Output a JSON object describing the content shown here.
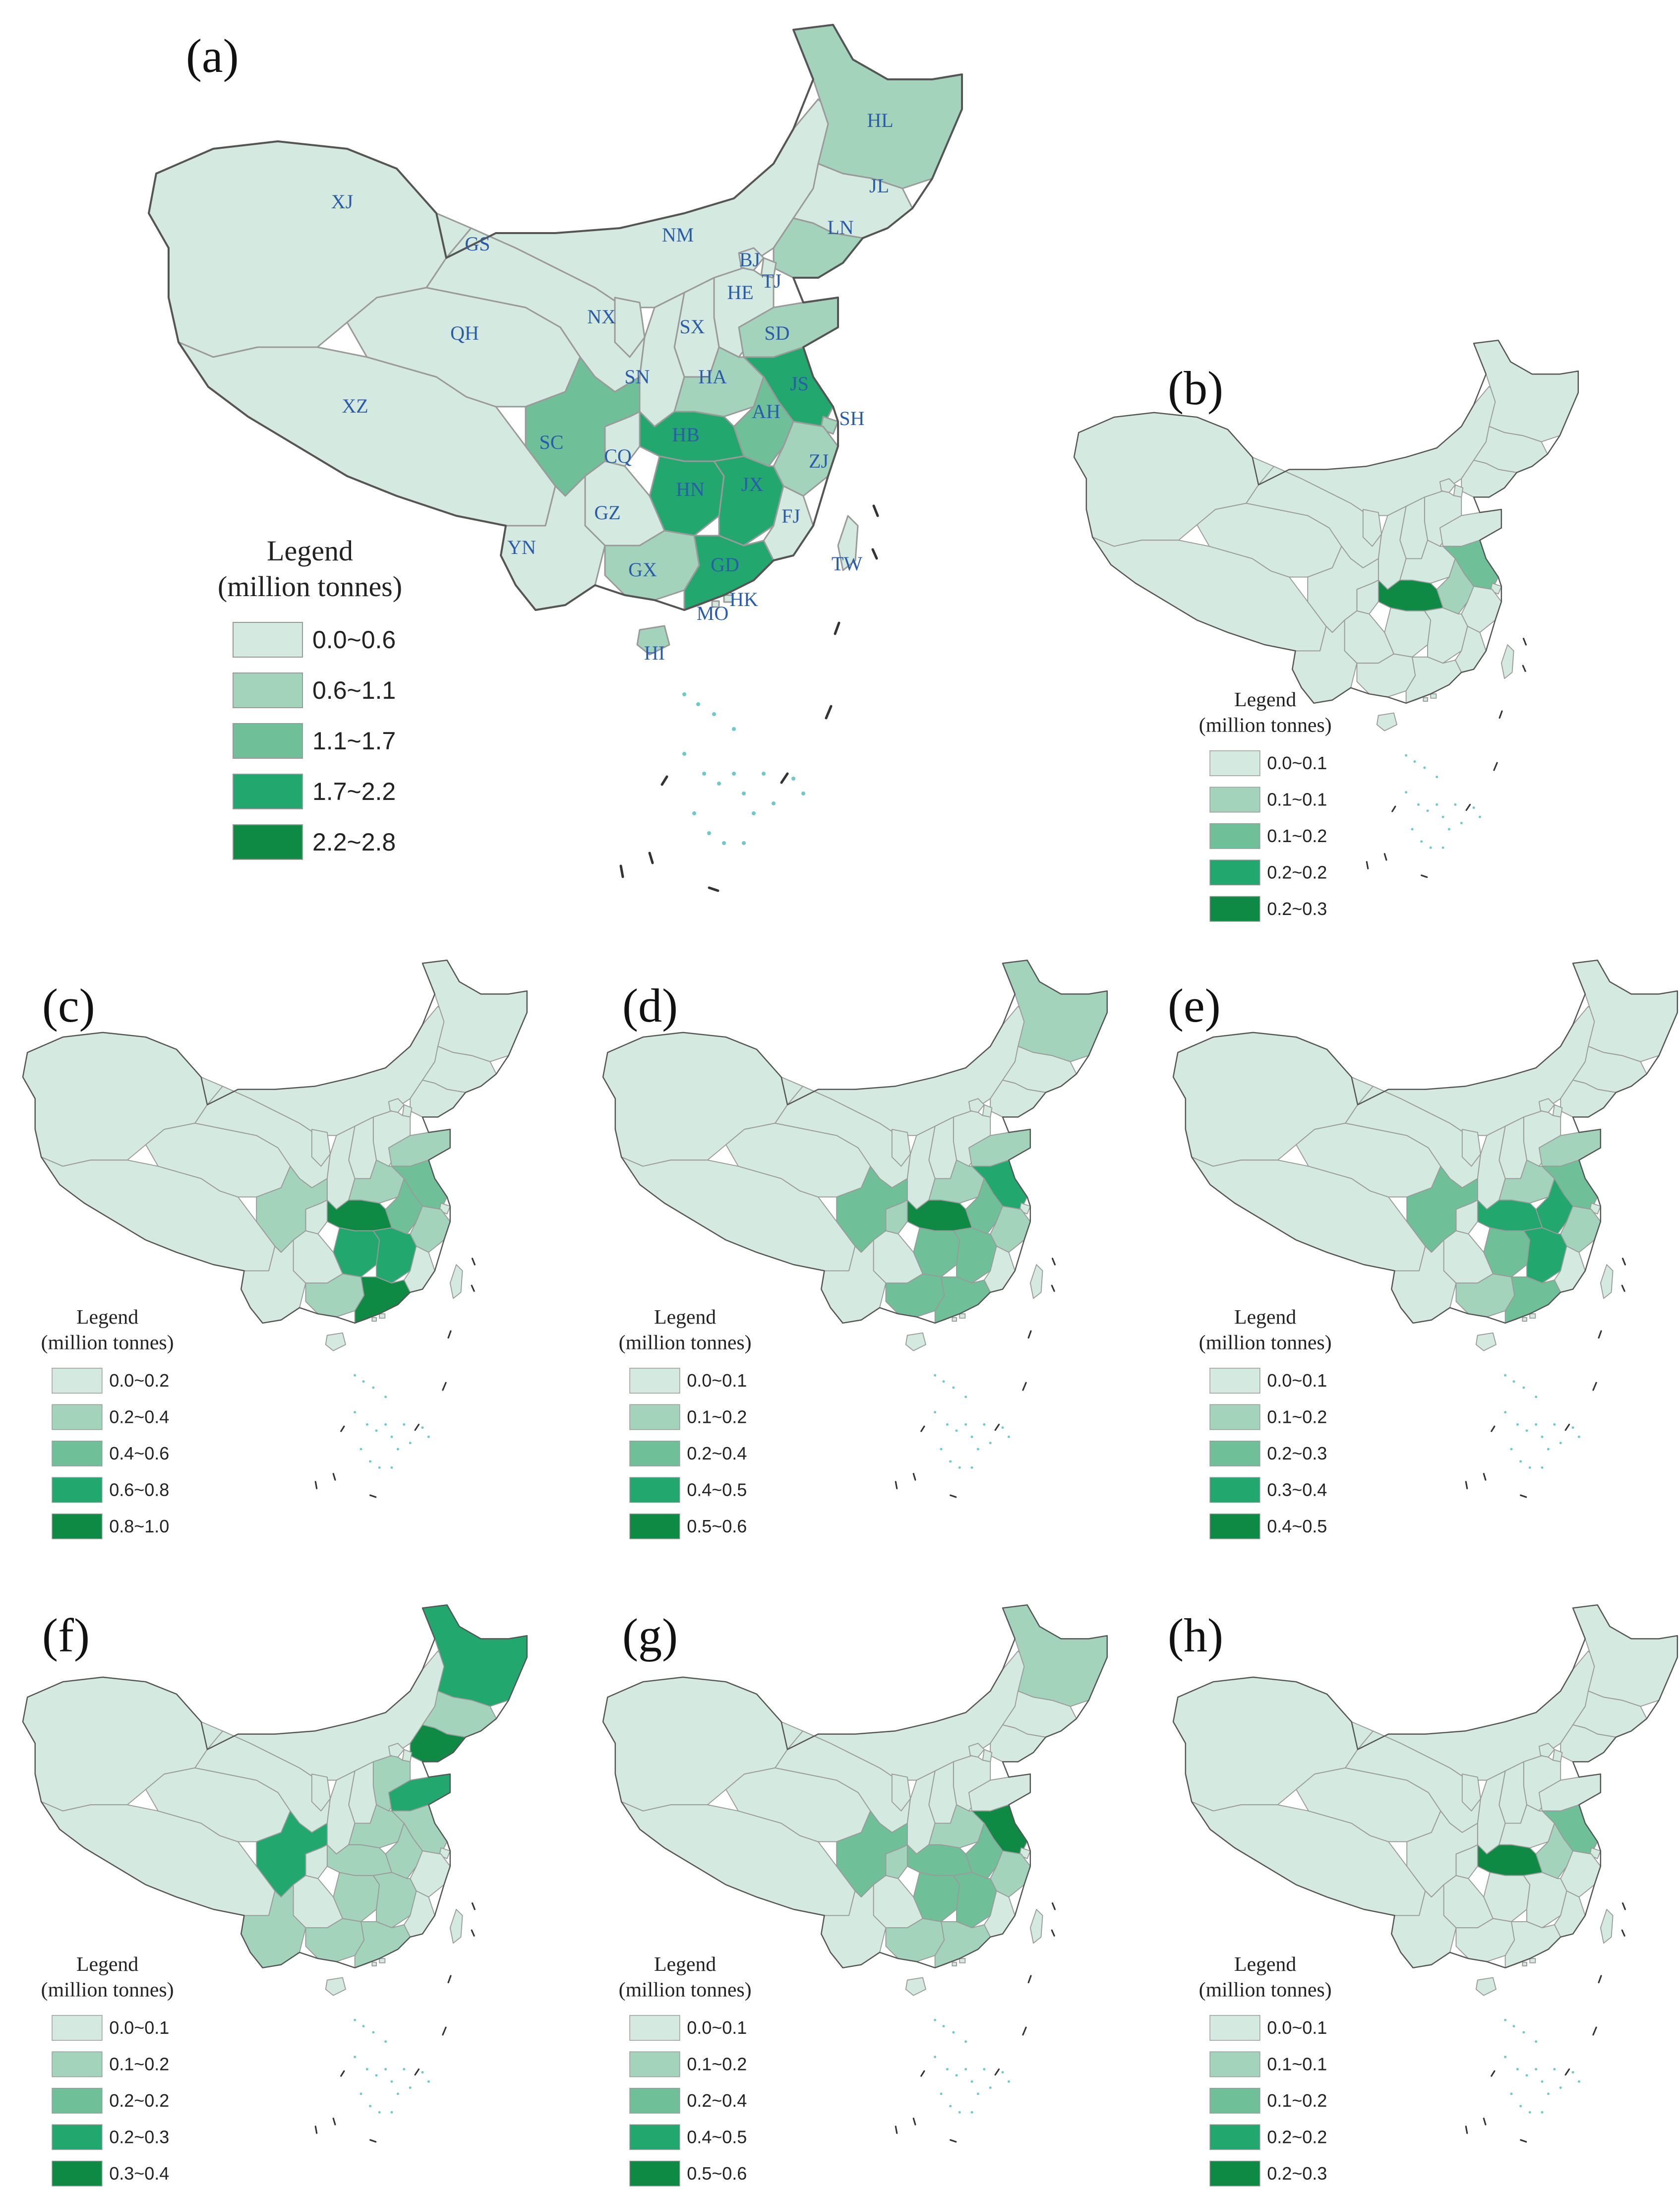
{
  "colors": {
    "class1": "#d4e9df",
    "class2": "#a3d3bb",
    "class3": "#6fbf98",
    "class4": "#22a76e",
    "class5": "#0f8a45",
    "label": "#2a5caa",
    "border": "#9a9a9a"
  },
  "legend_title_line1": "Legend",
  "legend_title_line2": "(million tonnes)",
  "panels": [
    {
      "id": "a",
      "label": "(a)",
      "legend": [
        "0.0~0.6",
        "0.6~1.1",
        "1.1~1.7",
        "1.7~2.2",
        "2.2~2.8"
      ],
      "province_labels": [
        "XJ",
        "GS",
        "NM",
        "HL",
        "JL",
        "LN",
        "BJ",
        "TJ",
        "HE",
        "SX",
        "NX",
        "QH",
        "XZ",
        "SN",
        "SD",
        "HA",
        "JS",
        "AH",
        "SH",
        "SC",
        "CQ",
        "HB",
        "HN",
        "JX",
        "ZJ",
        "FJ",
        "GZ",
        "YN",
        "GX",
        "GD",
        "HK",
        "MO",
        "TW",
        "HI"
      ],
      "classes": {
        "XJ": 1,
        "GS": 1,
        "NM": 1,
        "HL": 2,
        "JL": 1,
        "LN": 2,
        "BJ": 1,
        "TJ": 1,
        "HE": 1,
        "SX": 1,
        "NX": 1,
        "QH": 1,
        "XZ": 1,
        "SN": 1,
        "SD": 2,
        "HA": 2,
        "JS": 4,
        "AH": 3,
        "SH": 2,
        "SC": 3,
        "CQ": 1,
        "HB": 4,
        "HN": 4,
        "JX": 4,
        "ZJ": 2,
        "FJ": 1,
        "GZ": 1,
        "YN": 1,
        "GX": 2,
        "GD": 4,
        "TW": 1,
        "HI": 2
      }
    },
    {
      "id": "b",
      "label": "(b)",
      "legend": [
        "0.0~0.1",
        "0.1~0.1",
        "0.1~0.2",
        "0.2~0.2",
        "0.2~0.3"
      ],
      "classes": {
        "HB": 5,
        "JS": 3,
        "AH": 2
      }
    },
    {
      "id": "c",
      "label": "(c)",
      "legend": [
        "0.0~0.2",
        "0.2~0.4",
        "0.4~0.6",
        "0.6~0.8",
        "0.8~1.0"
      ],
      "classes": {
        "HB": 5,
        "HN": 4,
        "JX": 4,
        "GD": 5,
        "AH": 3,
        "JS": 3,
        "SC": 2,
        "GX": 2,
        "SD": 2,
        "HA": 2,
        "ZJ": 2
      }
    },
    {
      "id": "d",
      "label": "(d)",
      "legend": [
        "0.0~0.1",
        "0.1~0.2",
        "0.2~0.4",
        "0.4~0.5",
        "0.5~0.6"
      ],
      "classes": {
        "HB": 5,
        "JS": 4,
        "AH": 3,
        "HN": 3,
        "JX": 3,
        "GD": 3,
        "GX": 3,
        "SC": 3,
        "HL": 2,
        "HA": 2,
        "SD": 2,
        "CQ": 2,
        "ZJ": 2
      }
    },
    {
      "id": "e",
      "label": "(e)",
      "legend": [
        "0.0~0.1",
        "0.1~0.2",
        "0.2~0.3",
        "0.3~0.4",
        "0.4~0.5"
      ],
      "classes": {
        "HB": 4,
        "JX": 4,
        "HN": 3,
        "AH": 4,
        "JS": 3,
        "SC": 3,
        "GD": 3,
        "GX": 2,
        "HA": 2,
        "SD": 2,
        "ZJ": 2
      }
    },
    {
      "id": "f",
      "label": "(f)",
      "legend": [
        "0.0~0.1",
        "0.1~0.2",
        "0.2~0.2",
        "0.2~0.3",
        "0.3~0.4"
      ],
      "classes": {
        "HL": 4,
        "LN": 5,
        "SD": 4,
        "SC": 4,
        "HE": 2,
        "HA": 2,
        "JS": 2,
        "AH": 2,
        "HN": 2,
        "JX": 2,
        "GX": 2,
        "GD": 2,
        "YN": 2,
        "HB": 2,
        "JL": 2,
        "NM": 1
      }
    },
    {
      "id": "g",
      "label": "(g)",
      "legend": [
        "0.0~0.1",
        "0.1~0.2",
        "0.2~0.4",
        "0.4~0.5",
        "0.5~0.6"
      ],
      "classes": {
        "JS": 5,
        "SC": 3,
        "HB": 3,
        "HN": 3,
        "JX": 3,
        "AH": 3,
        "GD": 2,
        "GX": 2,
        "HL": 2,
        "CQ": 2,
        "ZJ": 2,
        "HA": 2
      }
    },
    {
      "id": "h",
      "label": "(h)",
      "legend": [
        "0.0~0.1",
        "0.1~0.1",
        "0.1~0.2",
        "0.2~0.2",
        "0.2~0.3"
      ],
      "classes": {
        "HB": 5,
        "JS": 3,
        "AH": 2
      }
    }
  ]
}
